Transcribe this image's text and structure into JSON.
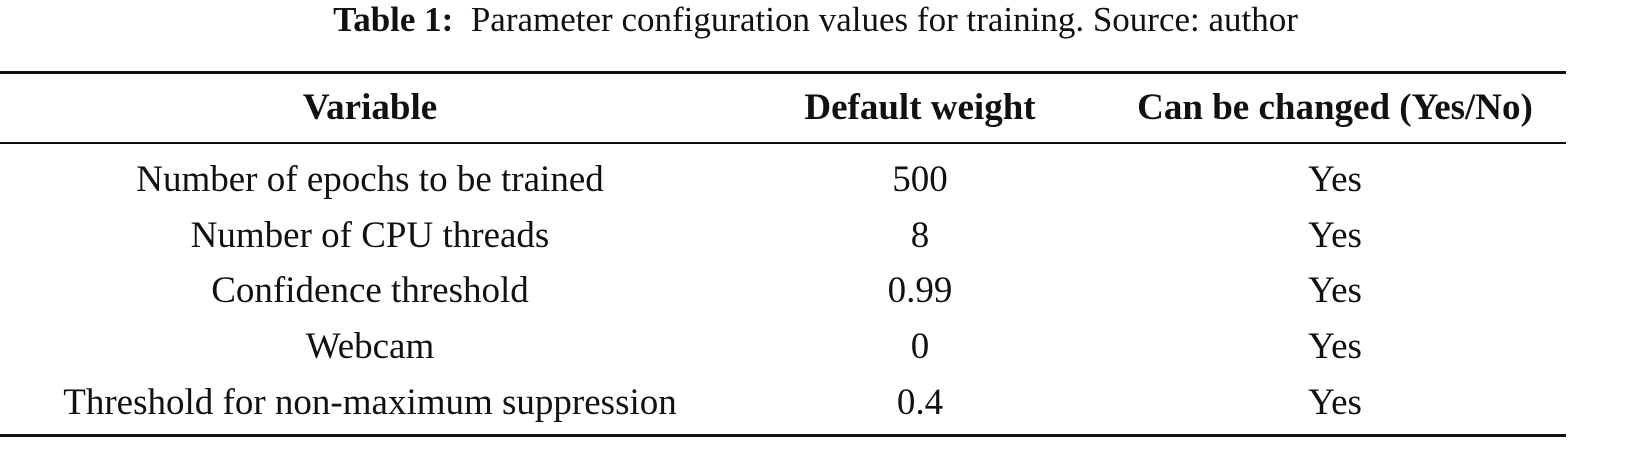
{
  "caption": {
    "label": "Table 1:",
    "text": "Parameter configuration values for training. Source: author"
  },
  "table": {
    "header": [
      "Variable",
      "Default weight",
      "Can be changed (Yes/No)"
    ],
    "rows": [
      [
        "Number of epochs to be trained",
        "500",
        "Yes"
      ],
      [
        "Number of CPU threads",
        "8",
        "Yes"
      ],
      [
        "Confidence threshold",
        "0.99",
        "Yes"
      ],
      [
        "Webcam",
        "0",
        "Yes"
      ],
      [
        "Threshold for non-maximum suppression",
        "0.4",
        "Yes"
      ]
    ]
  }
}
